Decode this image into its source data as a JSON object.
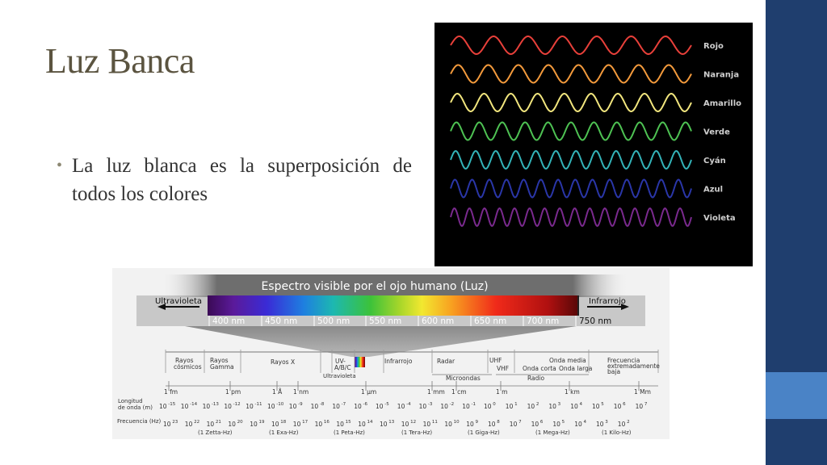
{
  "slide": {
    "title": "Luz Banca",
    "bullet": "La luz blanca es la superposición de todos los colores",
    "accent_dark": "#1f3e6e",
    "accent_light": "#4a83c6"
  },
  "waves": [
    {
      "label": "Rojo",
      "color": "#e8403a",
      "cycles": 7
    },
    {
      "label": "Naranja",
      "color": "#f39a3c",
      "cycles": 8
    },
    {
      "label": "Amarillo",
      "color": "#f2e67e",
      "cycles": 9
    },
    {
      "label": "Verde",
      "color": "#4ec253",
      "cycles": 10.5
    },
    {
      "label": "Cyán",
      "color": "#33b3b8",
      "cycles": 12
    },
    {
      "label": "Azul",
      "color": "#2a36a8",
      "cycles": 14
    },
    {
      "label": "Violeta",
      "color": "#7a2a8e",
      "cycles": 16
    }
  ],
  "spectrum": {
    "title": "Espectro visible por el ojo humano (Luz)",
    "left_label": "Ultravioleta",
    "right_label": "Infrarrojo",
    "nm_labels": [
      "400 nm",
      "450 nm",
      "500 nm",
      "550 nm",
      "600 nm",
      "650 nm",
      "700 nm",
      "750 nm"
    ],
    "regions": {
      "rayos_cosmicos": [
        "Rayos",
        "cósmicos"
      ],
      "rayos_gamma": [
        "Rayos",
        "Gamma"
      ],
      "rayos_x": "Rayos X",
      "uv": [
        "UV-",
        "A/B/C"
      ],
      "ultravioleta": "Ultravioleta",
      "infrarrojo": "Infrarrojo",
      "radar": "Radar",
      "microondas": "Microondas",
      "uhf": "UHF",
      "vhf": "VHF",
      "onda_corta": "Onda corta",
      "onda_media": "Onda media",
      "onda_larga": "Onda larga",
      "radio": "Radio",
      "frecuencia_baja": [
        "Frecuencia",
        "extremadamente",
        "baja"
      ]
    },
    "length_units": [
      "1 fm",
      "1 pm",
      "1 Å",
      "1 nm",
      "1 µm",
      "1 mm",
      "1 cm",
      "1 m",
      "1 km",
      "1 Mm"
    ],
    "longitud_label": [
      "Longitud",
      "de onda (m)"
    ],
    "longitud_exponents": [
      "-15",
      "-14",
      "-13",
      "-12",
      "-11",
      "-10",
      "-9",
      "-8",
      "-7",
      "-6",
      "-5",
      "-4",
      "-3",
      "-2",
      "-1",
      "0",
      "1",
      "2",
      "3",
      "4",
      "5",
      "6",
      "7"
    ],
    "frecuencia_label": "Frecuencia (Hz)",
    "frecuencia_exponents": [
      "23",
      "22",
      "21",
      "20",
      "19",
      "18",
      "17",
      "16",
      "15",
      "14",
      "13",
      "12",
      "11",
      "10",
      "9",
      "8",
      "7",
      "6",
      "5",
      "4",
      "3",
      "2"
    ],
    "freq_groups": [
      "(1 Zetta-Hz)",
      "(1 Exa-Hz)",
      "(1 Peta-Hz)",
      "(1 Tera-Hz)",
      "(1 Giga-Hz)",
      "(1 Mega-Hz)",
      "(1 Kilo-Hz)"
    ]
  }
}
